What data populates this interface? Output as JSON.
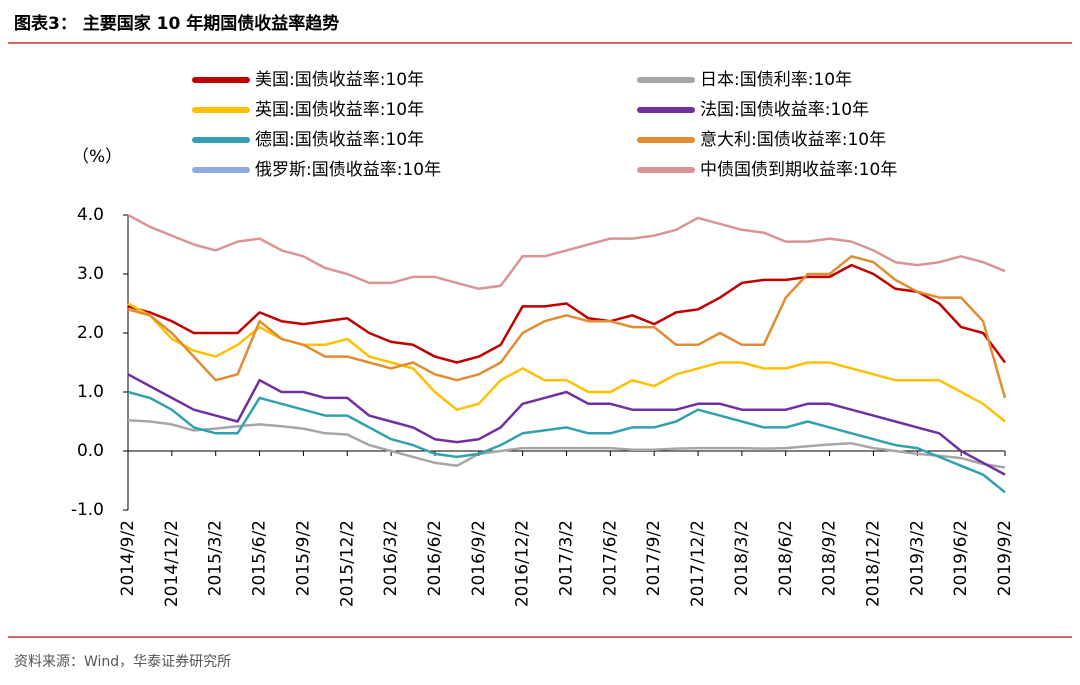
{
  "chart_data": {
    "type": "line",
    "title": "图表3： 主要国家 10 年期国债收益率趋势",
    "y_label": "（%）",
    "source": "资料来源：Wind，华泰证券研究所",
    "categories": [
      "2014/9/2",
      null,
      "2014/12/2",
      null,
      "2015/3/2",
      null,
      "2015/6/2",
      null,
      "2015/9/2",
      null,
      "2015/12/2",
      null,
      "2016/3/2",
      null,
      "2016/6/2",
      null,
      "2016/9/2",
      null,
      "2016/12/2",
      null,
      "2017/3/2",
      null,
      "2017/6/2",
      null,
      "2017/9/2",
      null,
      "2017/12/2",
      null,
      "2018/3/2",
      null,
      "2018/6/2",
      null,
      "2018/9/2",
      null,
      "2018/12/2",
      null,
      "2019/3/2",
      null,
      "2019/6/2",
      null,
      "2019/9/2"
    ],
    "ylim": [
      -1,
      4
    ],
    "yticks": [
      {
        "value": 4,
        "label": "4.0"
      },
      {
        "value": 3,
        "label": "3.0"
      },
      {
        "value": 2,
        "label": "2.0"
      },
      {
        "value": 1,
        "label": "1.0"
      },
      {
        "value": 0,
        "label": "0.0"
      },
      {
        "value": -1,
        "label": "-1.0"
      }
    ],
    "grid": false,
    "series": [
      {
        "name": "美国:国债收益率:10年",
        "color": "#c00000",
        "values": [
          2.45,
          2.35,
          2.2,
          2.0,
          2.0,
          2.0,
          2.35,
          2.2,
          2.15,
          2.2,
          2.25,
          2.0,
          1.85,
          1.8,
          1.6,
          1.5,
          1.6,
          1.8,
          2.45,
          2.45,
          2.5,
          2.25,
          2.2,
          2.3,
          2.15,
          2.35,
          2.4,
          2.6,
          2.85,
          2.9,
          2.9,
          2.95,
          2.95,
          3.15,
          3.0,
          2.75,
          2.7,
          2.5,
          2.1,
          2.0,
          1.5
        ]
      },
      {
        "name": "日本:国债利率:10年",
        "color": "#a6a6a6",
        "values": [
          0.52,
          0.5,
          0.45,
          0.35,
          0.38,
          0.42,
          0.45,
          0.42,
          0.38,
          0.3,
          0.28,
          0.1,
          0.0,
          -0.1,
          -0.2,
          -0.25,
          -0.05,
          0.0,
          0.05,
          0.05,
          0.05,
          0.05,
          0.05,
          0.02,
          0.02,
          0.04,
          0.05,
          0.05,
          0.05,
          0.04,
          0.05,
          0.08,
          0.11,
          0.13,
          0.05,
          0.0,
          -0.05,
          -0.08,
          -0.12,
          -0.22,
          -0.28
        ]
      },
      {
        "name": "英国:国债收益率:10年",
        "color": "#ffc000",
        "values": [
          2.5,
          2.3,
          1.9,
          1.7,
          1.6,
          1.8,
          2.1,
          1.9,
          1.8,
          1.8,
          1.9,
          1.6,
          1.5,
          1.4,
          1.0,
          0.7,
          0.8,
          1.2,
          1.4,
          1.2,
          1.2,
          1.0,
          1.0,
          1.2,
          1.1,
          1.3,
          1.4,
          1.5,
          1.5,
          1.4,
          1.4,
          1.5,
          1.5,
          1.4,
          1.3,
          1.2,
          1.2,
          1.2,
          1.0,
          0.8,
          0.5
        ]
      },
      {
        "name": "法国:国债收益率:10年",
        "color": "#7030a0",
        "values": [
          1.3,
          1.1,
          0.9,
          0.7,
          0.6,
          0.5,
          1.2,
          1.0,
          1.0,
          0.9,
          0.9,
          0.6,
          0.5,
          0.4,
          0.2,
          0.15,
          0.2,
          0.4,
          0.8,
          0.9,
          1.0,
          0.8,
          0.8,
          0.7,
          0.7,
          0.7,
          0.8,
          0.8,
          0.7,
          0.7,
          0.7,
          0.8,
          0.8,
          0.7,
          0.6,
          0.5,
          0.4,
          0.3,
          0.0,
          -0.2,
          -0.4
        ]
      },
      {
        "name": "德国:国债收益率:10年",
        "color": "#31a0b0",
        "values": [
          1.0,
          0.9,
          0.7,
          0.4,
          0.3,
          0.3,
          0.9,
          0.8,
          0.7,
          0.6,
          0.6,
          0.4,
          0.2,
          0.1,
          -0.05,
          -0.1,
          -0.05,
          0.1,
          0.3,
          0.35,
          0.4,
          0.3,
          0.3,
          0.4,
          0.4,
          0.5,
          0.7,
          0.6,
          0.5,
          0.4,
          0.4,
          0.5,
          0.4,
          0.3,
          0.2,
          0.1,
          0.05,
          -0.1,
          -0.25,
          -0.4,
          -0.7
        ]
      },
      {
        "name": "意大利:国债收益率:10年",
        "color": "#e08c30",
        "values": [
          2.4,
          2.3,
          2.0,
          1.6,
          1.2,
          1.3,
          2.2,
          1.9,
          1.8,
          1.6,
          1.6,
          1.5,
          1.4,
          1.5,
          1.3,
          1.2,
          1.3,
          1.5,
          2.0,
          2.2,
          2.3,
          2.2,
          2.2,
          2.1,
          2.1,
          1.8,
          1.8,
          2.0,
          1.8,
          1.8,
          2.6,
          3.0,
          3.0,
          3.3,
          3.2,
          2.9,
          2.7,
          2.6,
          2.6,
          2.2,
          0.9
        ]
      },
      {
        "name": "俄罗斯:国债收益率:10年",
        "color": "#8faadc",
        "values": [
          null,
          null,
          null,
          null,
          null,
          null,
          null,
          null,
          null,
          null,
          null,
          null,
          null,
          null,
          null,
          null,
          null,
          null,
          null,
          null,
          null,
          null,
          null,
          null,
          null,
          null,
          null,
          null,
          null,
          null,
          null,
          null,
          null,
          null,
          null,
          null,
          null,
          null,
          null,
          null,
          null
        ]
      },
      {
        "name": "中债国债到期收益率:10年",
        "color": "#d99594",
        "values": [
          4.0,
          3.8,
          3.65,
          3.5,
          3.4,
          3.55,
          3.6,
          3.4,
          3.3,
          3.1,
          3.0,
          2.85,
          2.85,
          2.95,
          2.95,
          2.85,
          2.75,
          2.8,
          3.3,
          3.3,
          3.4,
          3.5,
          3.6,
          3.6,
          3.65,
          3.75,
          3.95,
          3.85,
          3.75,
          3.7,
          3.55,
          3.55,
          3.6,
          3.55,
          3.4,
          3.2,
          3.15,
          3.2,
          3.3,
          3.2,
          3.05
        ]
      }
    ]
  }
}
